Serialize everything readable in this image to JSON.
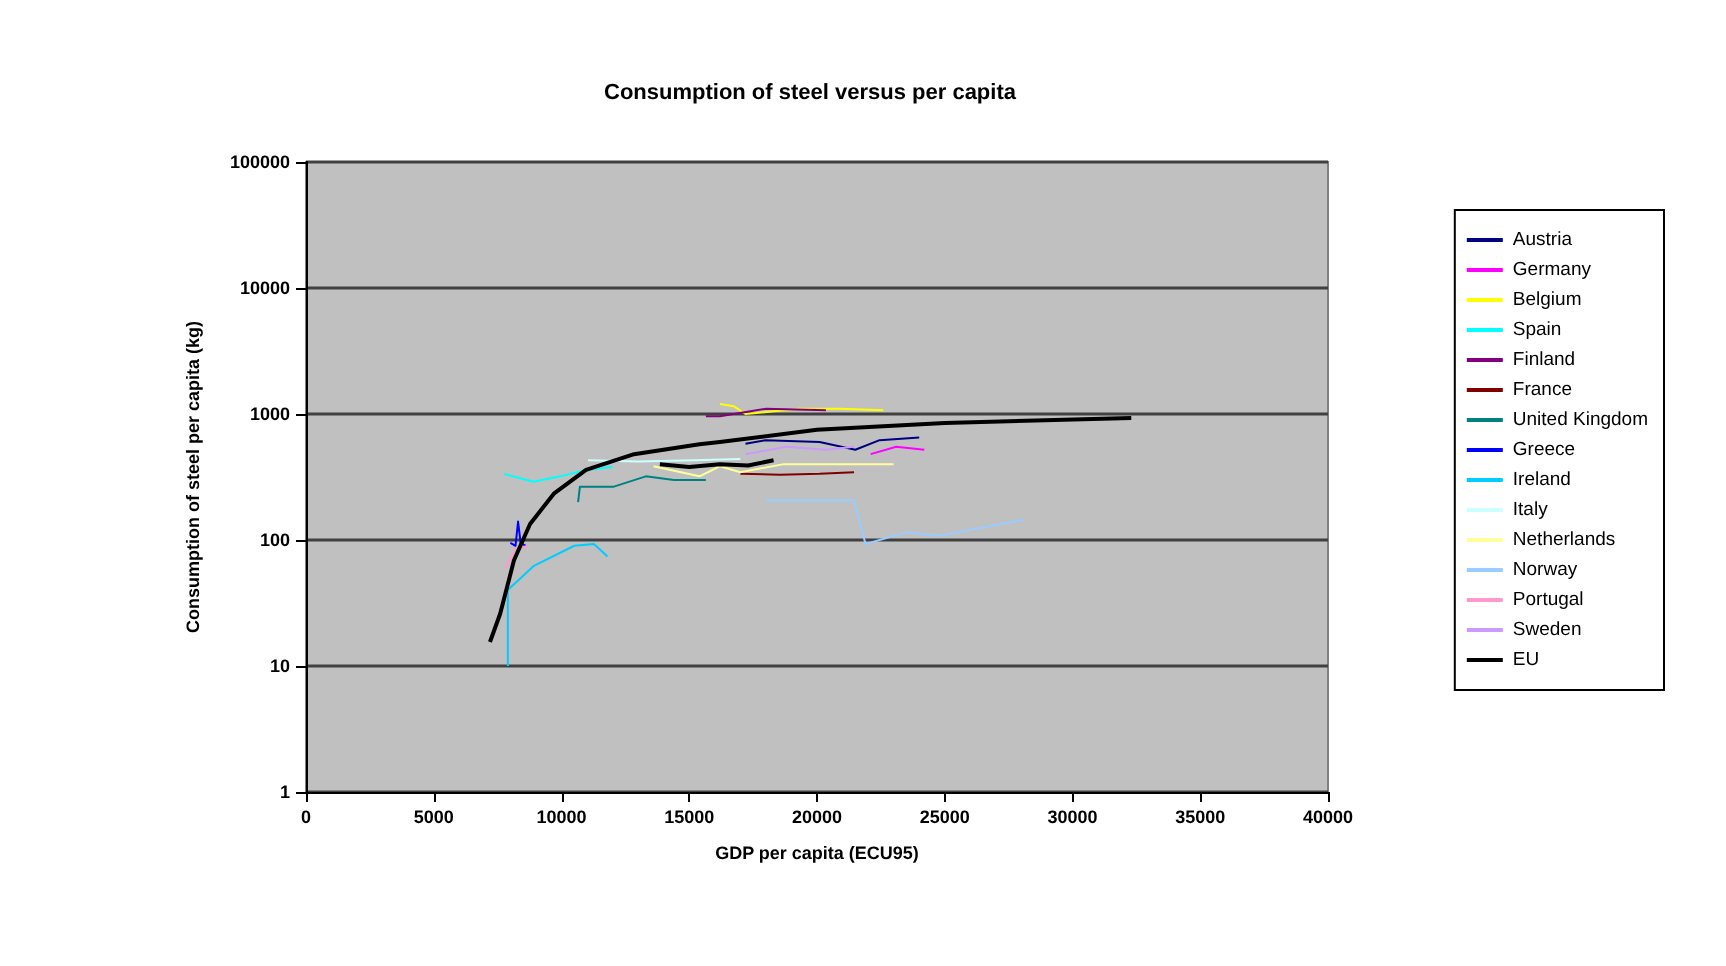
{
  "chart_data": {
    "type": "line",
    "title": "Consumption of steel versus per capita",
    "xlabel": "GDP per capita (ECU95)",
    "ylabel": "Consumption of steel per capita (kg)",
    "xlim": [
      0,
      40000
    ],
    "xticks": [
      0,
      5000,
      10000,
      15000,
      20000,
      25000,
      30000,
      35000,
      40000
    ],
    "ylim": [
      1,
      100000
    ],
    "yticks": [
      1,
      10,
      100,
      1000,
      10000,
      100000
    ],
    "log": "y",
    "grid": "y",
    "legend": "right",
    "marker": "none",
    "line_style": "solid",
    "series": [
      {
        "name": "Austria",
        "color": "#000080",
        "x": [
          17200,
          18000,
          20100,
          21500,
          22450,
          24000
        ],
        "values": [
          580,
          620,
          600,
          520,
          620,
          650
        ]
      },
      {
        "name": "Germany",
        "color": "#ff00ff",
        "x": [
          22100,
          23100,
          24200
        ],
        "values": [
          480,
          550,
          520
        ]
      },
      {
        "name": "Belgium",
        "color": "#ffff00",
        "x": [
          16200,
          16750,
          17200,
          19300,
          20900,
          22600
        ],
        "values": [
          1200,
          1150,
          1000,
          1100,
          1100,
          1070
        ]
      },
      {
        "name": "Spain",
        "color": "#00ffff",
        "x": [
          7750,
          8900,
          9950,
          10960,
          12000
        ],
        "values": [
          335,
          290,
          320,
          360,
          380
        ]
      },
      {
        "name": "Finland",
        "color": "#800080",
        "x": [
          15650,
          16200,
          18000,
          20350
        ],
        "values": [
          960,
          960,
          1100,
          1070
        ]
      },
      {
        "name": "France",
        "color": "#800000",
        "x": [
          17000,
          18550,
          20100,
          21450
        ],
        "values": [
          335,
          330,
          335,
          345
        ]
      },
      {
        "name": "United Kingdom",
        "color": "#008080",
        "x": [
          10650,
          10720,
          12050,
          13300,
          14400,
          15650
        ],
        "values": [
          200,
          265,
          265,
          320,
          300,
          300
        ]
      },
      {
        "name": "Greece",
        "color": "#0000ff",
        "x": [
          8000,
          8200,
          8300,
          8400,
          8600
        ],
        "values": [
          95,
          90,
          140,
          95,
          90
        ]
      },
      {
        "name": "Ireland",
        "color": "#00ccff",
        "x": [
          7900,
          7900,
          8900,
          10500,
          11270,
          11800
        ],
        "values": [
          10,
          40,
          62,
          90,
          93,
          74
        ]
      },
      {
        "name": "Italy",
        "color": "#ccffff",
        "x": [
          11040,
          13000,
          15200,
          17000
        ],
        "values": [
          430,
          420,
          430,
          440
        ]
      },
      {
        "name": "Netherlands",
        "color": "#ffff99",
        "x": [
          13600,
          15400,
          16200,
          17000,
          18700,
          23000
        ],
        "values": [
          385,
          320,
          385,
          345,
          400,
          400
        ]
      },
      {
        "name": "Norway",
        "color": "#99ccff",
        "x": [
          18000,
          21450,
          21900,
          23500,
          24800,
          28100
        ],
        "values": [
          207,
          207,
          93,
          115,
          108,
          145
        ]
      },
      {
        "name": "Portugal",
        "color": "#ff99cc",
        "x": [
          7800,
          8200,
          8700
        ],
        "values": [
          60,
          85,
          90
        ]
      },
      {
        "name": "Sweden",
        "color": "#cc99ff",
        "x": [
          17200,
          18800,
          20350,
          21450
        ],
        "values": [
          480,
          550,
          520,
          550
        ]
      },
      {
        "name": "EU",
        "color": "#000000",
        "x": [
          7200,
          7600,
          8140,
          8770,
          9700,
          10960,
          12840,
          15400,
          16200,
          20000,
          25000,
          32300,
          null,
          13850,
          15000,
          16200,
          17300,
          18300
        ],
        "values": [
          15.5,
          26,
          69,
          134,
          233,
          360,
          480,
          575,
          600,
          750,
          850,
          930,
          null,
          400,
          380,
          400,
          390,
          430
        ]
      }
    ]
  }
}
